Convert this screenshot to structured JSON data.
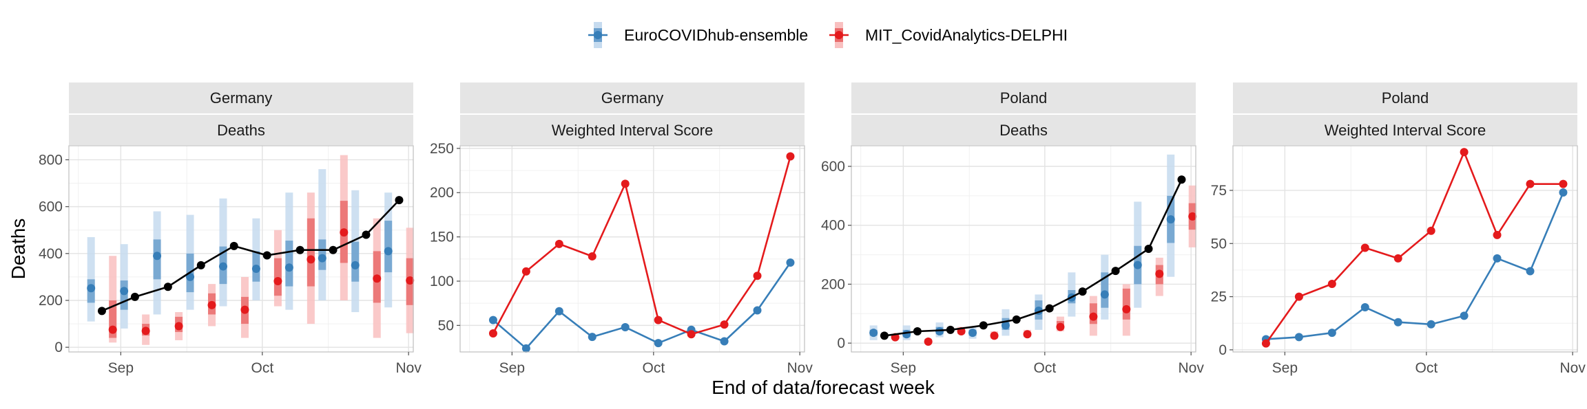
{
  "colors": {
    "ensemble": "#377EB8",
    "delphi": "#E41A1C",
    "observed": "#000000",
    "ensemble_outer": "#C6DBEF",
    "ensemble_inner": "#6A9FCD",
    "delphi_outer": "#F9C0C0",
    "delphi_inner": "#E96B6B"
  },
  "chart_data": {
    "type": "line",
    "xlabel": "End of data/forecast week",
    "ylabel": "Deaths",
    "x_ticks": [
      "Sep",
      "Oct",
      "Nov"
    ],
    "legend": {
      "position": "top",
      "entries": [
        "EuroCOVIDhub-ensemble",
        "MIT_CovidAnalytics-DELPHI"
      ]
    },
    "dates": [
      "2021-08-28",
      "2021-09-04",
      "2021-09-11",
      "2021-09-18",
      "2021-09-25",
      "2021-10-02",
      "2021-10-09",
      "2021-10-16",
      "2021-10-23",
      "2021-10-30"
    ],
    "panels": [
      {
        "strip_top": "Germany",
        "strip_bottom": "Deaths",
        "ylim": [
          -20,
          860
        ],
        "y_ticks": [
          0,
          200,
          400,
          600,
          800
        ],
        "observed": [
          155,
          215,
          258,
          350,
          432,
          392,
          415,
          415,
          480,
          628
        ],
        "ensemble": {
          "median": [
            252,
            240,
            390,
            300,
            345,
            335,
            340,
            380,
            350,
            410
          ],
          "q05": [
            110,
            80,
            140,
            160,
            175,
            200,
            160,
            200,
            150,
            170
          ],
          "q25": [
            190,
            160,
            290,
            235,
            270,
            280,
            260,
            330,
            280,
            320
          ],
          "q75": [
            290,
            285,
            460,
            400,
            430,
            410,
            455,
            460,
            450,
            540
          ],
          "q95": [
            470,
            440,
            580,
            565,
            635,
            550,
            660,
            760,
            670,
            660
          ]
        },
        "delphi": {
          "median": [
            75,
            70,
            90,
            180,
            160,
            282,
            375,
            490,
            293,
            285
          ],
          "q05": [
            20,
            10,
            30,
            90,
            40,
            175,
            100,
            200,
            40,
            60
          ],
          "q25": [
            40,
            50,
            65,
            140,
            100,
            220,
            260,
            360,
            190,
            180
          ],
          "q75": [
            200,
            100,
            130,
            230,
            215,
            380,
            550,
            625,
            410,
            380
          ],
          "q95": [
            390,
            140,
            150,
            270,
            300,
            500,
            660,
            820,
            550,
            510
          ]
        }
      },
      {
        "strip_top": "Germany",
        "strip_bottom": "Weighted Interval Score",
        "ylim": [
          20,
          253
        ],
        "y_ticks": [
          50,
          100,
          150,
          200,
          250
        ],
        "ensemble": [
          56,
          24,
          66,
          37,
          48,
          30,
          45,
          32,
          67,
          121
        ],
        "delphi": [
          41,
          111,
          142,
          128,
          210,
          56,
          40,
          51,
          106,
          241
        ]
      },
      {
        "strip_top": "Poland",
        "strip_bottom": "Deaths",
        "ylim": [
          -30,
          670
        ],
        "y_ticks": [
          0,
          200,
          400,
          600
        ],
        "observed": [
          25,
          40,
          45,
          60,
          80,
          118,
          175,
          245,
          320,
          555
        ],
        "ensemble": {
          "median": [
            35,
            30,
            40,
            35,
            60,
            110,
            155,
            165,
            265,
            420
          ],
          "q05": [
            10,
            10,
            20,
            15,
            25,
            45,
            90,
            80,
            120,
            225
          ],
          "q25": [
            25,
            20,
            30,
            25,
            45,
            80,
            135,
            120,
            200,
            340
          ],
          "q75": [
            45,
            45,
            55,
            45,
            85,
            145,
            180,
            240,
            330,
            500
          ],
          "q95": [
            60,
            60,
            70,
            55,
            115,
            165,
            240,
            300,
            480,
            640
          ]
        },
        "delphi": {
          "median": [
            20,
            5,
            40,
            25,
            30,
            55,
            90,
            115,
            235,
            430
          ],
          "q05": [
            15,
            0,
            30,
            15,
            20,
            40,
            25,
            25,
            160,
            325
          ],
          "q25": [
            18,
            3,
            35,
            20,
            25,
            50,
            65,
            80,
            200,
            385
          ],
          "q75": [
            25,
            10,
            45,
            30,
            35,
            75,
            135,
            185,
            265,
            475
          ],
          "q95": [
            30,
            15,
            55,
            40,
            45,
            90,
            160,
            200,
            290,
            535
          ]
        }
      },
      {
        "strip_top": "Poland",
        "strip_bottom": "Weighted Interval Score",
        "ylim": [
          -1,
          96
        ],
        "y_ticks": [
          0,
          25,
          50,
          75
        ],
        "ensemble": [
          5,
          6,
          8,
          20,
          13,
          12,
          16,
          43,
          37,
          74
        ],
        "delphi": [
          3,
          25,
          31,
          48,
          43,
          56,
          93,
          54,
          78,
          78
        ]
      }
    ]
  }
}
